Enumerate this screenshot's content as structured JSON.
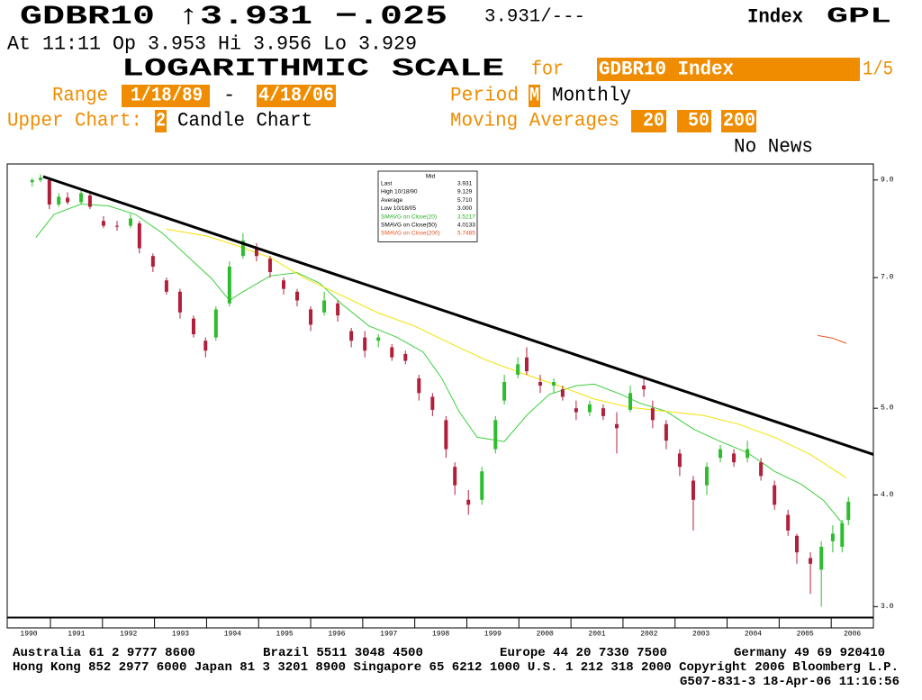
{
  "header": {
    "quote": "GDBR10 ↑3.931 −.025",
    "bid_ask": "3.931/---",
    "index": "Index",
    "ticker": "GPL",
    "quote_line": "At 11:11  Op 3.953 Hi 3.956 Lo 3.929",
    "scale": "LOGARITHMIC SCALE",
    "for": "for",
    "security_field": "GDBR10 Index",
    "page": "1/5",
    "range_label": "Range",
    "range_start": "1/18/89",
    "range_sep": "-",
    "range_end": "4/18/06",
    "period_label": "Period",
    "period_code": "M",
    "period": "Monthly",
    "upper_chart_label": "Upper Chart:",
    "upper_chart_code": "2",
    "upper_chart": "Candle Chart",
    "ma_label": "Moving Averages",
    "ma": [
      "20",
      "50",
      "200"
    ],
    "news": "No News"
  },
  "chart_data": {
    "type": "candlestick",
    "log_scale": true,
    "up_color": "#2ebd2e",
    "down_color": "#b0203a",
    "xlim": [
      1990.17,
      2006.81
    ],
    "xticks": [
      1991,
      1992,
      1993,
      1994,
      1995,
      1996,
      1997,
      1998,
      1999,
      2000,
      2001,
      2002,
      2003,
      2004,
      2005,
      2006
    ],
    "year_labels": [
      1990,
      1991,
      1992,
      1993,
      1994,
      1995,
      1996,
      1997,
      1998,
      1999,
      2000,
      2001,
      2002,
      2003,
      2004,
      2005,
      2006
    ],
    "ylim": [
      2.92,
      9.38
    ],
    "yticks": [
      {
        "value": 9,
        "label": "9.0"
      },
      {
        "value": 7,
        "label": "7.0"
      },
      {
        "value": 5,
        "label": "5.0"
      },
      {
        "value": 4,
        "label": "4.0"
      },
      {
        "value": 3,
        "label": "3.0"
      }
    ],
    "x": [
      1990.65,
      1990.81,
      1990.98,
      1991.16,
      1991.33,
      1991.59,
      1991.76,
      1992.02,
      1992.28,
      1992.54,
      1992.71,
      1992.97,
      1993.23,
      1993.49,
      1993.75,
      1993.98,
      1994.18,
      1994.44,
      1994.7,
      1994.96,
      1995.22,
      1995.48,
      1995.74,
      1996.0,
      1996.26,
      1996.52,
      1996.78,
      1997.04,
      1997.3,
      1997.56,
      1997.82,
      1998.08,
      1998.34,
      1998.6,
      1998.77,
      1999.03,
      1999.29,
      1999.55,
      1999.72,
      1999.98,
      2000.15,
      2000.41,
      2000.67,
      2000.84,
      2001.1,
      2001.36,
      2001.62,
      2001.88,
      2002.14,
      2002.4,
      2002.57,
      2002.83,
      2003.09,
      2003.35,
      2003.61,
      2003.87,
      2004.13,
      2004.39,
      2004.65,
      2004.91,
      2005.17,
      2005.34,
      2005.6,
      2005.81,
      2006.03,
      2006.21,
      2006.33
    ],
    "open": [
      8.95,
      9.0,
      9.0,
      8.45,
      8.6,
      8.5,
      8.65,
      8.1,
      8.0,
      8.0,
      8.05,
      7.4,
      6.95,
      6.75,
      6.3,
      5.95,
      6.0,
      6.55,
      7.4,
      7.55,
      7.35,
      6.95,
      6.75,
      6.45,
      6.4,
      6.55,
      6.1,
      6.0,
      5.95,
      5.85,
      5.75,
      5.4,
      5.15,
      4.85,
      4.3,
      3.95,
      3.95,
      4.5,
      5.1,
      5.45,
      5.7,
      5.35,
      5.3,
      5.25,
      5.0,
      4.95,
      5.0,
      4.8,
      4.98,
      5.3,
      5.0,
      4.8,
      4.45,
      4.15,
      4.1,
      4.4,
      4.45,
      4.4,
      4.35,
      4.1,
      3.8,
      3.6,
      3.4,
      3.3,
      3.55,
      3.5,
      3.75
    ],
    "high": [
      9.05,
      9.13,
      9.05,
      8.7,
      8.72,
      8.8,
      8.7,
      8.2,
      8.1,
      8.25,
      8.1,
      7.45,
      7.0,
      6.8,
      6.35,
      6.0,
      6.5,
      7.3,
      7.85,
      7.65,
      7.4,
      7.0,
      6.8,
      6.5,
      6.75,
      6.6,
      6.15,
      6.1,
      6.05,
      5.9,
      5.8,
      5.45,
      5.2,
      4.9,
      4.35,
      4.05,
      4.3,
      4.9,
      5.45,
      5.7,
      5.85,
      5.45,
      5.4,
      5.3,
      5.1,
      5.1,
      5.05,
      4.95,
      5.3,
      5.4,
      5.1,
      4.85,
      4.5,
      4.2,
      4.35,
      4.55,
      4.5,
      4.6,
      4.4,
      4.15,
      3.85,
      3.62,
      3.45,
      3.55,
      3.7,
      3.75,
      3.98
    ],
    "low": [
      8.85,
      8.95,
      8.35,
      8.4,
      8.45,
      8.45,
      8.35,
      7.95,
      7.9,
      7.95,
      7.45,
      7.1,
      6.7,
      6.3,
      6.0,
      5.7,
      5.95,
      6.5,
      7.35,
      7.3,
      7.0,
      6.7,
      6.5,
      6.1,
      6.35,
      6.25,
      5.85,
      5.7,
      5.85,
      5.65,
      5.6,
      5.1,
      4.9,
      4.4,
      4.0,
      3.8,
      3.9,
      4.45,
      5.05,
      5.4,
      5.45,
      5.2,
      5.2,
      5.1,
      4.85,
      4.9,
      4.85,
      4.45,
      4.95,
      5.15,
      4.75,
      4.5,
      4.2,
      3.65,
      4.0,
      4.35,
      4.3,
      4.35,
      4.15,
      3.85,
      3.6,
      3.35,
      3.1,
      3.0,
      3.45,
      3.45,
      3.7
    ],
    "close": [
      9.0,
      9.05,
      8.45,
      8.62,
      8.5,
      8.7,
      8.4,
      8.0,
      7.98,
      8.15,
      7.55,
      7.2,
      6.75,
      6.4,
      6.05,
      5.8,
      6.45,
      7.2,
      7.7,
      7.4,
      7.1,
      6.8,
      6.6,
      6.2,
      6.6,
      6.35,
      5.95,
      5.8,
      6.0,
      5.7,
      5.65,
      5.2,
      4.98,
      4.5,
      4.1,
      3.9,
      4.25,
      4.85,
      5.35,
      5.6,
      5.5,
      5.3,
      5.35,
      5.15,
      4.95,
      5.05,
      4.9,
      4.75,
      5.2,
      5.25,
      4.85,
      4.6,
      4.3,
      3.95,
      4.3,
      4.5,
      4.35,
      4.5,
      4.2,
      3.9,
      3.65,
      3.45,
      3.35,
      3.5,
      3.62,
      3.72,
      3.931
    ],
    "series": [
      {
        "name": "SMAVG on Close(20)",
        "color": "#3ccf3c",
        "legend_color": "#22b022",
        "last": "3.5217",
        "x": [
          1990.72,
          1991.07,
          1991.59,
          1992.11,
          1992.63,
          1993.15,
          1993.66,
          1994.1,
          1994.44,
          1994.7,
          1995.22,
          1995.74,
          1996.17,
          1996.61,
          1997.12,
          1997.64,
          1998.16,
          1998.51,
          1998.85,
          1999.2,
          1999.72,
          2000.15,
          2000.58,
          2001.1,
          2001.45,
          2001.97,
          2002.31,
          2002.83,
          2003.35,
          2003.87,
          2004.39,
          2004.91,
          2005.43,
          2005.86,
          2006.21
        ],
        "values": [
          7.76,
          8.24,
          8.46,
          8.42,
          8.24,
          7.85,
          7.37,
          6.98,
          6.6,
          6.75,
          7.03,
          7.09,
          6.9,
          6.53,
          6.18,
          6.01,
          5.78,
          5.41,
          4.96,
          4.64,
          4.59,
          4.91,
          5.18,
          5.3,
          5.32,
          5.18,
          5.07,
          4.96,
          4.74,
          4.59,
          4.46,
          4.25,
          4.11,
          3.94,
          3.72
        ]
      },
      {
        "name": "SMAVG on Close(50)",
        "color": "#f2e200",
        "legend_color": "#000000",
        "last": "4.0133",
        "x": [
          1993.23,
          1994.01,
          1994.53,
          1995.22,
          1995.91,
          1996.61,
          1997.3,
          1997.99,
          1998.68,
          1999.37,
          2000.07,
          2000.76,
          2001.45,
          2002.14,
          2002.83,
          2003.53,
          2004.22,
          2004.91,
          2005.6,
          2006.29
        ],
        "values": [
          7.93,
          7.79,
          7.62,
          7.37,
          6.98,
          6.68,
          6.39,
          6.18,
          5.91,
          5.66,
          5.47,
          5.3,
          5.12,
          5.01,
          4.96,
          4.91,
          4.8,
          4.64,
          4.44,
          4.18
        ]
      },
      {
        "name": "SMAVG on Close(200)",
        "color": "#e8501a",
        "legend_color": "#e8501a",
        "last": "5.7485",
        "x": [
          2005.74,
          2006.03,
          2006.29
        ],
        "values": [
          6.03,
          5.99,
          5.91
        ]
      }
    ],
    "trendline": {
      "x": [
        1990.86,
        2006.81
      ],
      "values": [
        9.08,
        4.44
      ],
      "color": "#000000"
    },
    "stats_box": {
      "title": "Mid",
      "rows": [
        [
          "Last",
          "3.931"
        ],
        [
          "High  10/18/90",
          "9.129"
        ],
        [
          "Average",
          "5.710"
        ],
        [
          "Low  10/18/05",
          "3.000"
        ]
      ]
    }
  },
  "footer": {
    "contacts": [
      "Australia 61 2 9777 8600",
      "Brazil 5511 3048 4500",
      "Europe 44 20 7330 7500",
      "Germany 49 69 920410"
    ],
    "line2": "Hong Kong 852 2977 6000 Japan 81 3 3201 8900 Singapore 65 6212 1000 U.S. 1 212 318 2000 Copyright 2006 Bloomberg L.P.",
    "line3": "G507-831-3 18-Apr-06 11:16:56"
  }
}
